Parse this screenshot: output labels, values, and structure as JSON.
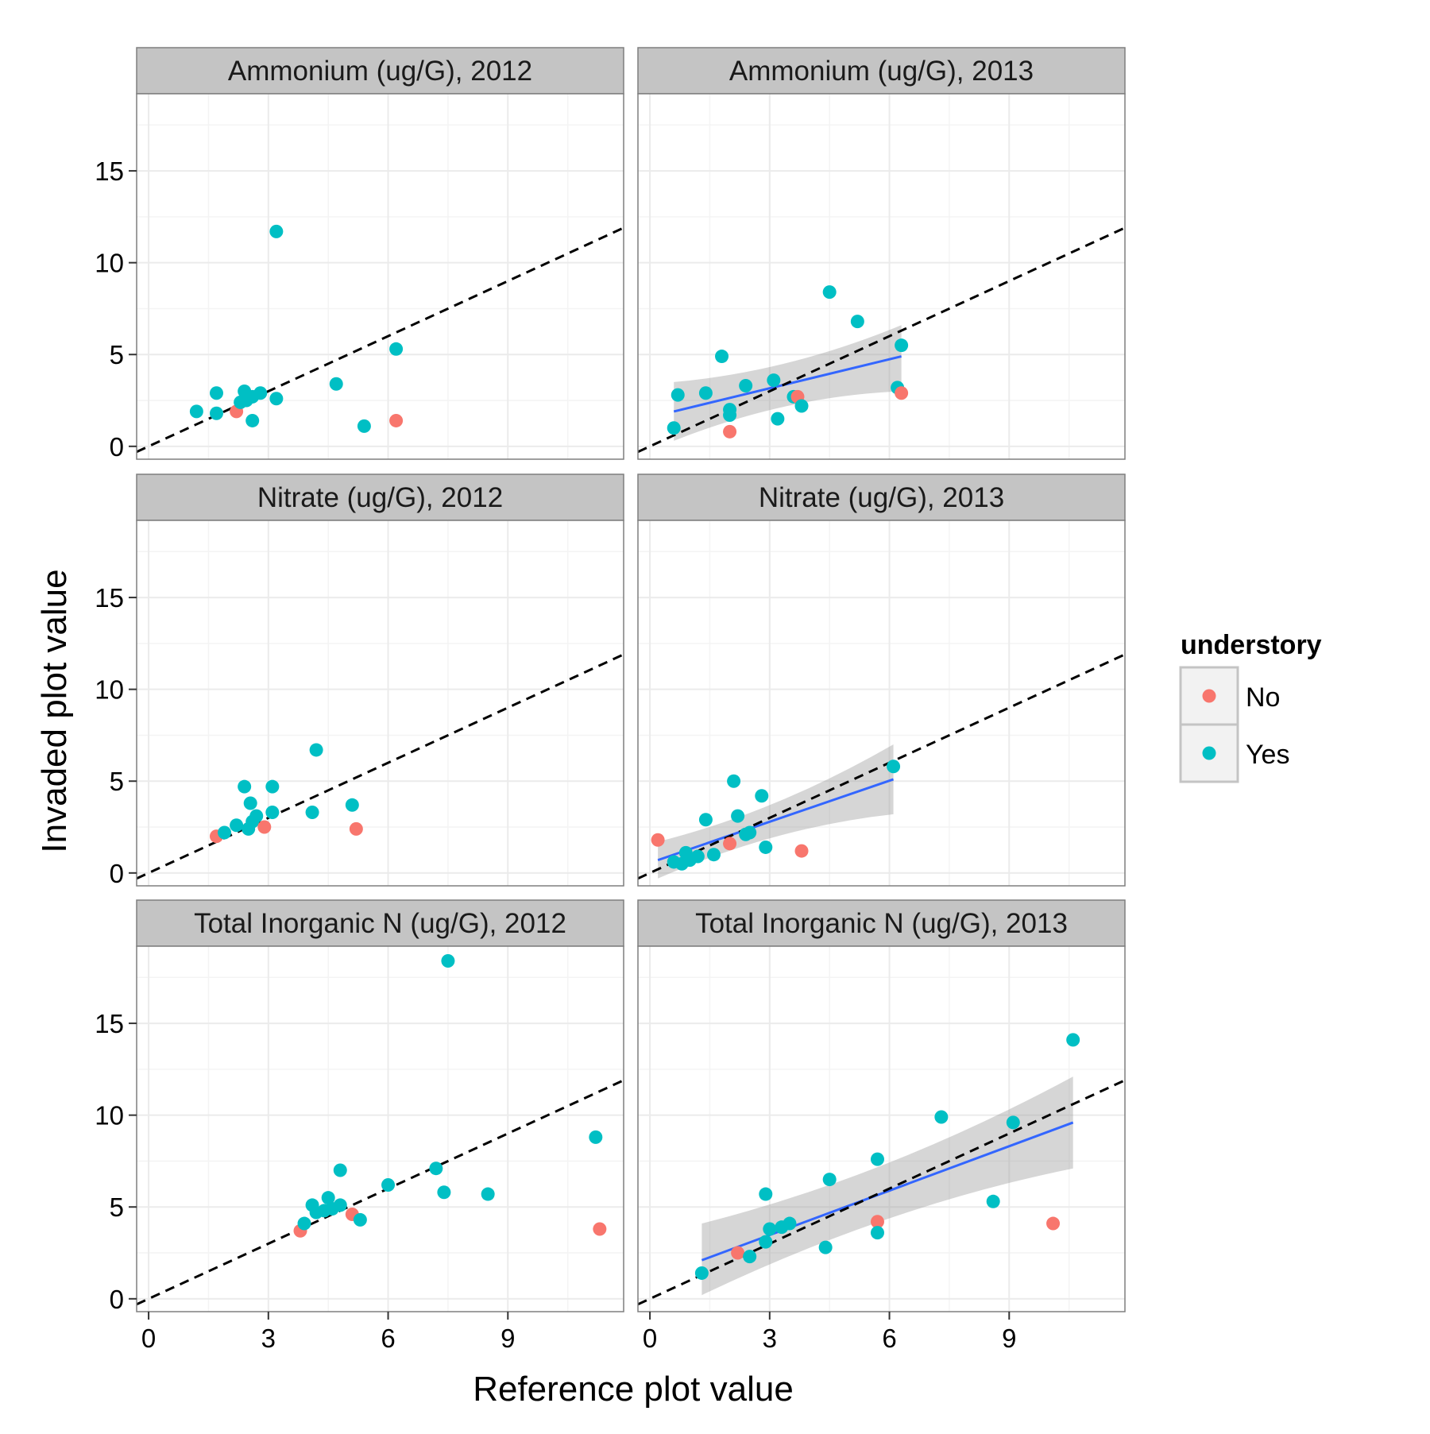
{
  "figure": {
    "xlabel": "Reference plot value",
    "ylabel": "Invaded plot value"
  },
  "legend": {
    "title": "understory",
    "position": "right",
    "items": [
      {
        "label": "No",
        "color": "#F8766D"
      },
      {
        "label": "Yes",
        "color": "#00BFC4"
      }
    ]
  },
  "colors": {
    "No": "#F8766D",
    "Yes": "#00BFC4",
    "fit_line": "#3366FF",
    "ribbon": "#999999",
    "strip_bg": "#c4c4c4",
    "panel_border": "#7f7f7f",
    "grid": "#ebebeb"
  },
  "chart_data": {
    "type": "scatter",
    "faceted": true,
    "xlim": [
      -0.3,
      11.9
    ],
    "ylim": [
      -0.7,
      19.2
    ],
    "x_ticks": [
      0,
      3,
      6,
      9
    ],
    "y_ticks": [
      0,
      5,
      10,
      15
    ],
    "reference_line": {
      "slope": 1,
      "intercept": 0,
      "style": "dashed"
    },
    "panels": [
      {
        "title": "Ammonium (ug/G), 2012",
        "fit": null,
        "points": [
          {
            "x": 1.2,
            "y": 1.9,
            "understory": "Yes"
          },
          {
            "x": 1.7,
            "y": 1.8,
            "understory": "Yes"
          },
          {
            "x": 1.7,
            "y": 2.9,
            "understory": "Yes"
          },
          {
            "x": 2.2,
            "y": 1.9,
            "understory": "No"
          },
          {
            "x": 2.3,
            "y": 2.4,
            "understory": "Yes"
          },
          {
            "x": 2.4,
            "y": 3.0,
            "understory": "Yes"
          },
          {
            "x": 2.45,
            "y": 2.5,
            "understory": "Yes"
          },
          {
            "x": 2.6,
            "y": 2.7,
            "understory": "Yes"
          },
          {
            "x": 2.6,
            "y": 1.4,
            "understory": "Yes"
          },
          {
            "x": 2.8,
            "y": 2.9,
            "understory": "Yes"
          },
          {
            "x": 3.2,
            "y": 2.6,
            "understory": "Yes"
          },
          {
            "x": 3.2,
            "y": 11.7,
            "understory": "Yes"
          },
          {
            "x": 4.7,
            "y": 3.4,
            "understory": "Yes"
          },
          {
            "x": 5.4,
            "y": 1.1,
            "understory": "Yes"
          },
          {
            "x": 6.2,
            "y": 5.3,
            "understory": "Yes"
          },
          {
            "x": 6.2,
            "y": 1.4,
            "understory": "No"
          }
        ]
      },
      {
        "title": "Ammonium (ug/G), 2013",
        "fit": {
          "x": [
            0.6,
            6.3
          ],
          "y": [
            1.9,
            4.9
          ],
          "ribbon_low": [
            0.3,
            3.0
          ],
          "ribbon_high": [
            3.5,
            6.6
          ]
        },
        "points": [
          {
            "x": 0.6,
            "y": 1.0,
            "understory": "Yes"
          },
          {
            "x": 0.7,
            "y": 2.8,
            "understory": "Yes"
          },
          {
            "x": 1.4,
            "y": 2.9,
            "understory": "Yes"
          },
          {
            "x": 1.8,
            "y": 4.9,
            "understory": "Yes"
          },
          {
            "x": 2.0,
            "y": 1.7,
            "understory": "Yes"
          },
          {
            "x": 2.0,
            "y": 2.0,
            "understory": "Yes"
          },
          {
            "x": 2.0,
            "y": 0.8,
            "understory": "No"
          },
          {
            "x": 2.4,
            "y": 3.3,
            "understory": "Yes"
          },
          {
            "x": 3.1,
            "y": 3.6,
            "understory": "Yes"
          },
          {
            "x": 3.2,
            "y": 1.5,
            "understory": "Yes"
          },
          {
            "x": 3.6,
            "y": 2.7,
            "understory": "Yes"
          },
          {
            "x": 3.7,
            "y": 2.7,
            "understory": "No"
          },
          {
            "x": 3.8,
            "y": 2.2,
            "understory": "Yes"
          },
          {
            "x": 4.5,
            "y": 8.4,
            "understory": "Yes"
          },
          {
            "x": 5.2,
            "y": 6.8,
            "understory": "Yes"
          },
          {
            "x": 6.2,
            "y": 3.2,
            "understory": "Yes"
          },
          {
            "x": 6.3,
            "y": 2.9,
            "understory": "No"
          },
          {
            "x": 6.3,
            "y": 5.5,
            "understory": "Yes"
          }
        ]
      },
      {
        "title": "Nitrate (ug/G), 2012",
        "fit": null,
        "points": [
          {
            "x": 1.7,
            "y": 2.0,
            "understory": "No"
          },
          {
            "x": 1.9,
            "y": 2.2,
            "understory": "Yes"
          },
          {
            "x": 2.2,
            "y": 2.6,
            "understory": "Yes"
          },
          {
            "x": 2.4,
            "y": 4.7,
            "understory": "Yes"
          },
          {
            "x": 2.5,
            "y": 2.4,
            "understory": "Yes"
          },
          {
            "x": 2.55,
            "y": 3.8,
            "understory": "Yes"
          },
          {
            "x": 2.6,
            "y": 2.8,
            "understory": "Yes"
          },
          {
            "x": 2.7,
            "y": 3.1,
            "understory": "Yes"
          },
          {
            "x": 2.9,
            "y": 2.5,
            "understory": "No"
          },
          {
            "x": 3.1,
            "y": 4.7,
            "understory": "Yes"
          },
          {
            "x": 3.1,
            "y": 3.3,
            "understory": "Yes"
          },
          {
            "x": 4.1,
            "y": 3.3,
            "understory": "Yes"
          },
          {
            "x": 4.2,
            "y": 6.7,
            "understory": "Yes"
          },
          {
            "x": 5.1,
            "y": 3.7,
            "understory": "Yes"
          },
          {
            "x": 5.2,
            "y": 2.4,
            "understory": "No"
          }
        ]
      },
      {
        "title": "Nitrate (ug/G), 2013",
        "fit": {
          "x": [
            0.2,
            6.1
          ],
          "y": [
            0.7,
            5.1
          ],
          "ribbon_low": [
            -0.3,
            3.2
          ],
          "ribbon_high": [
            1.7,
            7.0
          ]
        },
        "points": [
          {
            "x": 0.2,
            "y": 1.8,
            "understory": "No"
          },
          {
            "x": 0.6,
            "y": 0.6,
            "understory": "Yes"
          },
          {
            "x": 0.8,
            "y": 0.5,
            "understory": "Yes"
          },
          {
            "x": 0.9,
            "y": 1.1,
            "understory": "Yes"
          },
          {
            "x": 1.0,
            "y": 0.7,
            "understory": "Yes"
          },
          {
            "x": 1.2,
            "y": 0.9,
            "understory": "Yes"
          },
          {
            "x": 1.4,
            "y": 2.9,
            "understory": "Yes"
          },
          {
            "x": 1.6,
            "y": 1.0,
            "understory": "Yes"
          },
          {
            "x": 2.0,
            "y": 1.6,
            "understory": "No"
          },
          {
            "x": 2.1,
            "y": 5.0,
            "understory": "Yes"
          },
          {
            "x": 2.2,
            "y": 3.1,
            "understory": "Yes"
          },
          {
            "x": 2.4,
            "y": 2.1,
            "understory": "Yes"
          },
          {
            "x": 2.5,
            "y": 2.2,
            "understory": "Yes"
          },
          {
            "x": 2.8,
            "y": 4.2,
            "understory": "Yes"
          },
          {
            "x": 2.9,
            "y": 1.4,
            "understory": "Yes"
          },
          {
            "x": 3.8,
            "y": 1.2,
            "understory": "No"
          },
          {
            "x": 6.1,
            "y": 5.8,
            "understory": "Yes"
          }
        ]
      },
      {
        "title": "Total Inorganic N (ug/G), 2012",
        "fit": null,
        "points": [
          {
            "x": 3.8,
            "y": 3.7,
            "understory": "No"
          },
          {
            "x": 3.9,
            "y": 4.1,
            "understory": "Yes"
          },
          {
            "x": 4.1,
            "y": 5.1,
            "understory": "Yes"
          },
          {
            "x": 4.2,
            "y": 4.7,
            "understory": "Yes"
          },
          {
            "x": 4.4,
            "y": 4.8,
            "understory": "Yes"
          },
          {
            "x": 4.5,
            "y": 5.5,
            "understory": "Yes"
          },
          {
            "x": 4.6,
            "y": 4.9,
            "understory": "Yes"
          },
          {
            "x": 4.8,
            "y": 5.1,
            "understory": "Yes"
          },
          {
            "x": 4.8,
            "y": 7.0,
            "understory": "Yes"
          },
          {
            "x": 5.1,
            "y": 4.6,
            "understory": "No"
          },
          {
            "x": 5.3,
            "y": 4.3,
            "understory": "Yes"
          },
          {
            "x": 6.0,
            "y": 6.2,
            "understory": "Yes"
          },
          {
            "x": 7.2,
            "y": 7.1,
            "understory": "Yes"
          },
          {
            "x": 7.4,
            "y": 5.8,
            "understory": "Yes"
          },
          {
            "x": 7.5,
            "y": 18.4,
            "understory": "Yes"
          },
          {
            "x": 8.5,
            "y": 5.7,
            "understory": "Yes"
          },
          {
            "x": 11.2,
            "y": 8.8,
            "understory": "Yes"
          },
          {
            "x": 11.3,
            "y": 3.8,
            "understory": "No"
          }
        ]
      },
      {
        "title": "Total Inorganic N (ug/G), 2013",
        "fit": {
          "x": [
            1.3,
            10.6
          ],
          "y": [
            2.1,
            9.6
          ],
          "ribbon_low": [
            0.2,
            7.1
          ],
          "ribbon_high": [
            4.1,
            12.1
          ]
        },
        "points": [
          {
            "x": 1.3,
            "y": 1.4,
            "understory": "Yes"
          },
          {
            "x": 2.2,
            "y": 2.5,
            "understory": "No"
          },
          {
            "x": 2.5,
            "y": 2.3,
            "understory": "Yes"
          },
          {
            "x": 2.9,
            "y": 5.7,
            "understory": "Yes"
          },
          {
            "x": 2.9,
            "y": 3.1,
            "understory": "Yes"
          },
          {
            "x": 3.0,
            "y": 3.8,
            "understory": "Yes"
          },
          {
            "x": 3.3,
            "y": 3.9,
            "understory": "Yes"
          },
          {
            "x": 3.5,
            "y": 4.1,
            "understory": "Yes"
          },
          {
            "x": 4.4,
            "y": 2.8,
            "understory": "Yes"
          },
          {
            "x": 4.5,
            "y": 6.5,
            "understory": "Yes"
          },
          {
            "x": 5.7,
            "y": 4.2,
            "understory": "No"
          },
          {
            "x": 5.7,
            "y": 3.6,
            "understory": "Yes"
          },
          {
            "x": 5.7,
            "y": 7.6,
            "understory": "Yes"
          },
          {
            "x": 7.3,
            "y": 9.9,
            "understory": "Yes"
          },
          {
            "x": 8.6,
            "y": 5.3,
            "understory": "Yes"
          },
          {
            "x": 9.1,
            "y": 9.6,
            "understory": "Yes"
          },
          {
            "x": 10.1,
            "y": 4.1,
            "understory": "No"
          },
          {
            "x": 10.6,
            "y": 14.1,
            "understory": "Yes"
          }
        ]
      }
    ]
  }
}
